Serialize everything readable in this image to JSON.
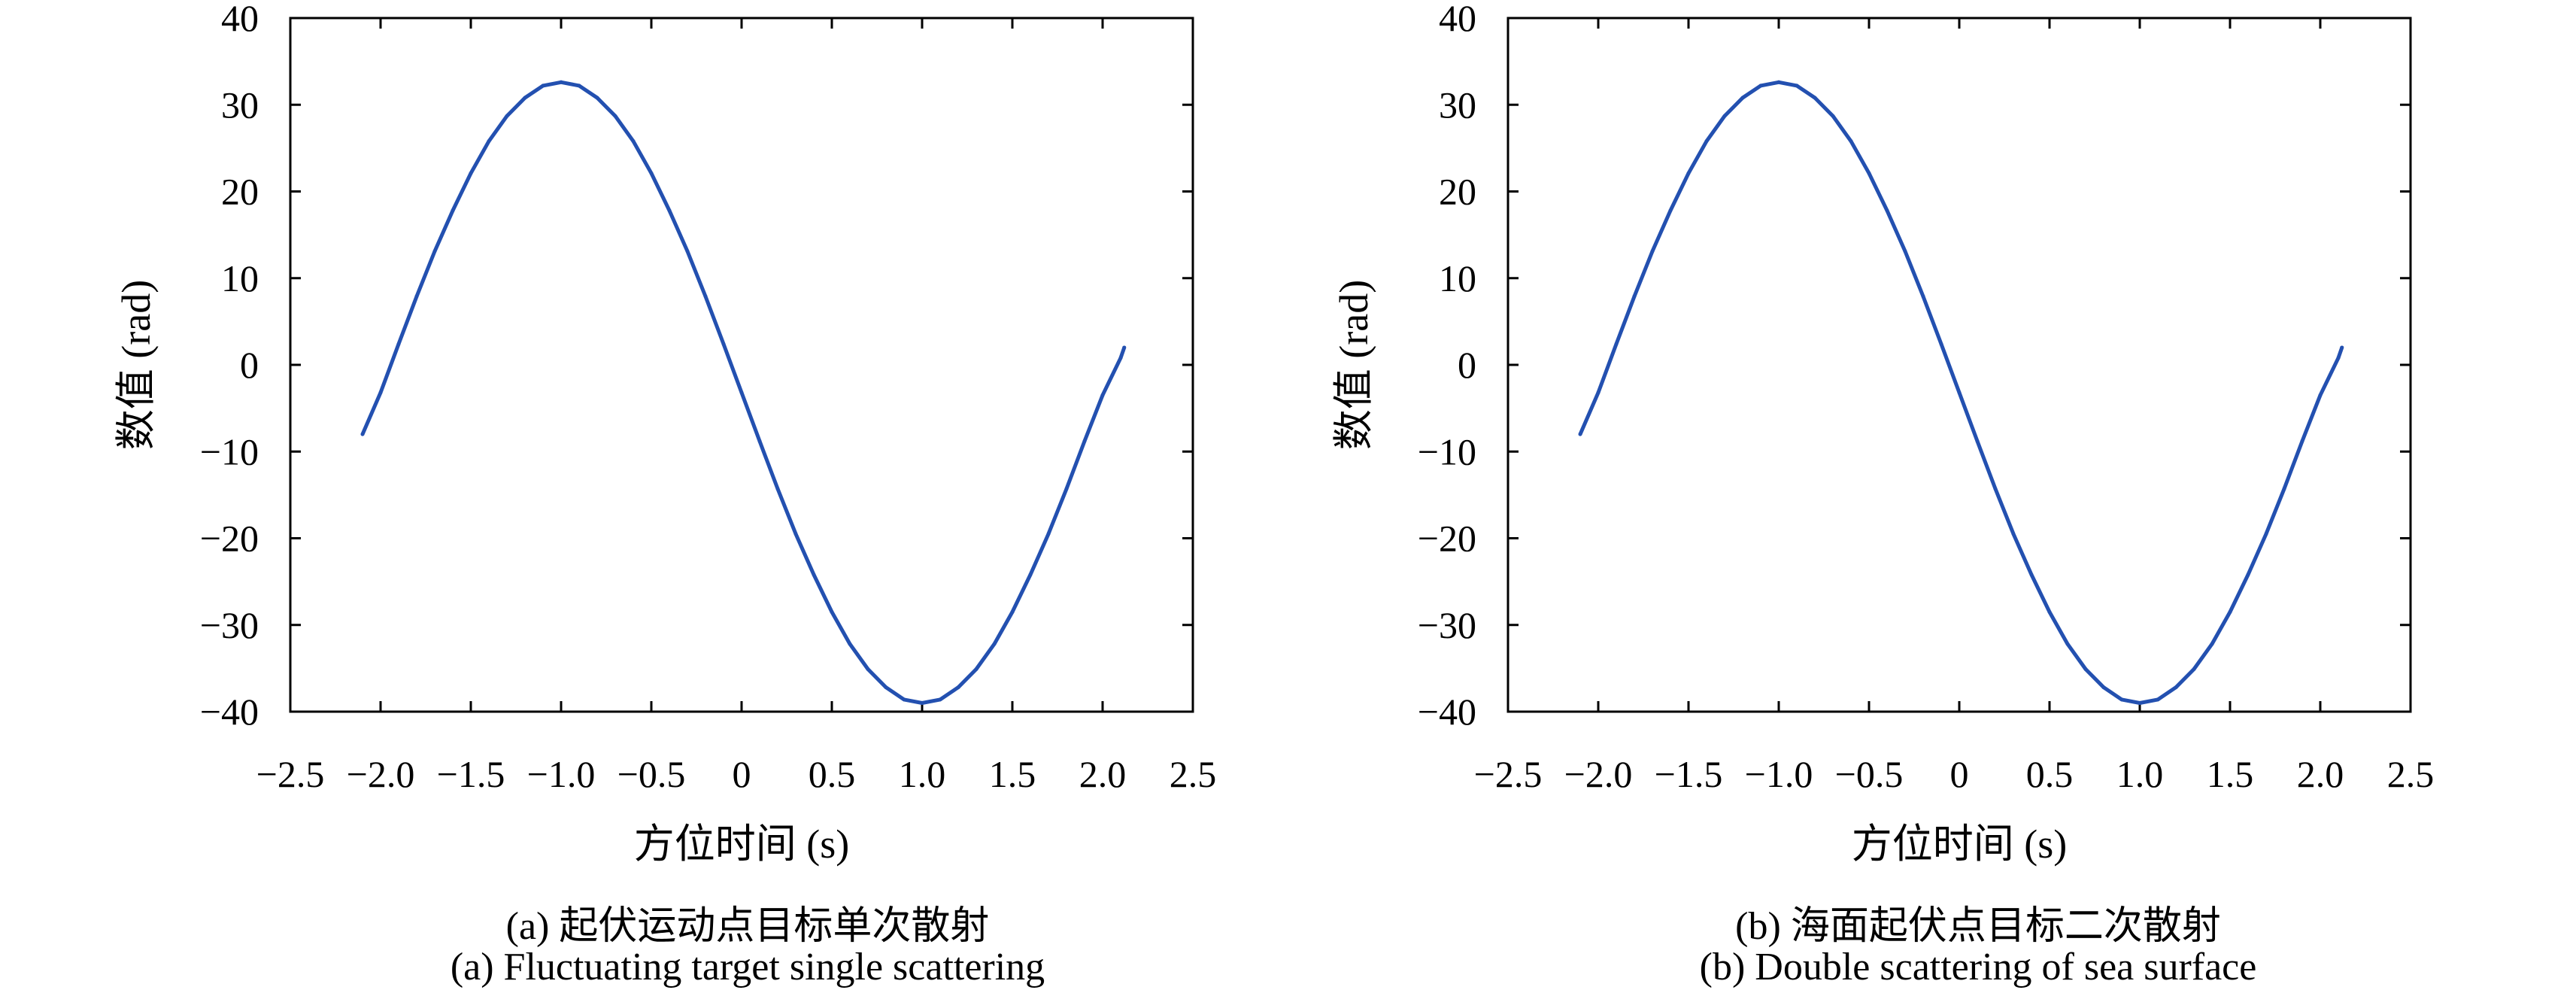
{
  "chart_data": [
    {
      "type": "line",
      "panel": "a",
      "xlabel": "方位时间 (s)",
      "ylabel": "数值 (rad)",
      "xlim": [
        -2.5,
        2.5
      ],
      "ylim": [
        -40,
        40
      ],
      "xticks": [
        "−2.5",
        "−2.0",
        "−1.5",
        "−1.0",
        "−0.5",
        "0",
        "0.5",
        "1.0",
        "1.5",
        "2.0",
        "2.5"
      ],
      "yticks": [
        "40",
        "30",
        "20",
        "10",
        "0",
        "−10",
        "−20",
        "−30",
        "−40"
      ],
      "grid": false,
      "line_color": "#2350b0",
      "x": [
        -2.1,
        -2.0,
        -1.9,
        -1.8,
        -1.7,
        -1.6,
        -1.5,
        -1.4,
        -1.3,
        -1.2,
        -1.1,
        -1.0,
        -0.9,
        -0.8,
        -0.7,
        -0.6,
        -0.5,
        -0.4,
        -0.3,
        -0.2,
        -0.1,
        0.0,
        0.1,
        0.2,
        0.3,
        0.4,
        0.5,
        0.6,
        0.7,
        0.8,
        0.9,
        1.0,
        1.1,
        1.2,
        1.3,
        1.4,
        1.5,
        1.6,
        1.7,
        1.8,
        1.9,
        2.0,
        2.1,
        2.12
      ],
      "y": [
        -8.0,
        -3.2,
        2.4,
        7.9,
        13.1,
        17.8,
        22.1,
        25.8,
        28.7,
        30.8,
        32.2,
        32.6,
        32.2,
        30.8,
        28.7,
        25.8,
        22.1,
        17.8,
        13.1,
        7.9,
        2.4,
        -3.2,
        -8.8,
        -14.3,
        -19.5,
        -24.2,
        -28.5,
        -32.2,
        -35.1,
        -37.2,
        -38.6,
        -39.0,
        -38.6,
        -37.2,
        -35.1,
        -32.2,
        -28.5,
        -24.2,
        -19.5,
        -14.3,
        -8.8,
        -3.5,
        0.8,
        2.0
      ],
      "caption_zh": "(a) 起伏运动点目标单次散射",
      "caption_en": "(a) Fluctuating target single scattering"
    },
    {
      "type": "line",
      "panel": "b",
      "xlabel": "方位时间 (s)",
      "ylabel": "数值 (rad)",
      "xlim": [
        -2.5,
        2.5
      ],
      "ylim": [
        -40,
        40
      ],
      "xticks": [
        "−2.5",
        "−2.0",
        "−1.5",
        "−1.0",
        "−0.5",
        "0",
        "0.5",
        "1.0",
        "1.5",
        "2.0",
        "2.5"
      ],
      "yticks": [
        "40",
        "30",
        "20",
        "10",
        "0",
        "−10",
        "−20",
        "−30",
        "−40"
      ],
      "grid": false,
      "line_color": "#2350b0",
      "x": [
        -2.1,
        -2.0,
        -1.9,
        -1.8,
        -1.7,
        -1.6,
        -1.5,
        -1.4,
        -1.3,
        -1.2,
        -1.1,
        -1.0,
        -0.9,
        -0.8,
        -0.7,
        -0.6,
        -0.5,
        -0.4,
        -0.3,
        -0.2,
        -0.1,
        0.0,
        0.1,
        0.2,
        0.3,
        0.4,
        0.5,
        0.6,
        0.7,
        0.8,
        0.9,
        1.0,
        1.1,
        1.2,
        1.3,
        1.4,
        1.5,
        1.6,
        1.7,
        1.8,
        1.9,
        2.0,
        2.1,
        2.12
      ],
      "y": [
        -8.0,
        -3.2,
        2.4,
        7.9,
        13.1,
        17.8,
        22.1,
        25.8,
        28.7,
        30.8,
        32.2,
        32.6,
        32.2,
        30.8,
        28.7,
        25.8,
        22.1,
        17.8,
        13.1,
        7.9,
        2.4,
        -3.2,
        -8.8,
        -14.3,
        -19.5,
        -24.2,
        -28.5,
        -32.2,
        -35.1,
        -37.2,
        -38.6,
        -39.0,
        -38.6,
        -37.2,
        -35.1,
        -32.2,
        -28.5,
        -24.2,
        -19.5,
        -14.3,
        -8.8,
        -3.5,
        0.8,
        2.0
      ],
      "caption_zh": "(b) 海面起伏点目标二次散射",
      "caption_en": "(b) Double scattering of sea surface"
    }
  ]
}
